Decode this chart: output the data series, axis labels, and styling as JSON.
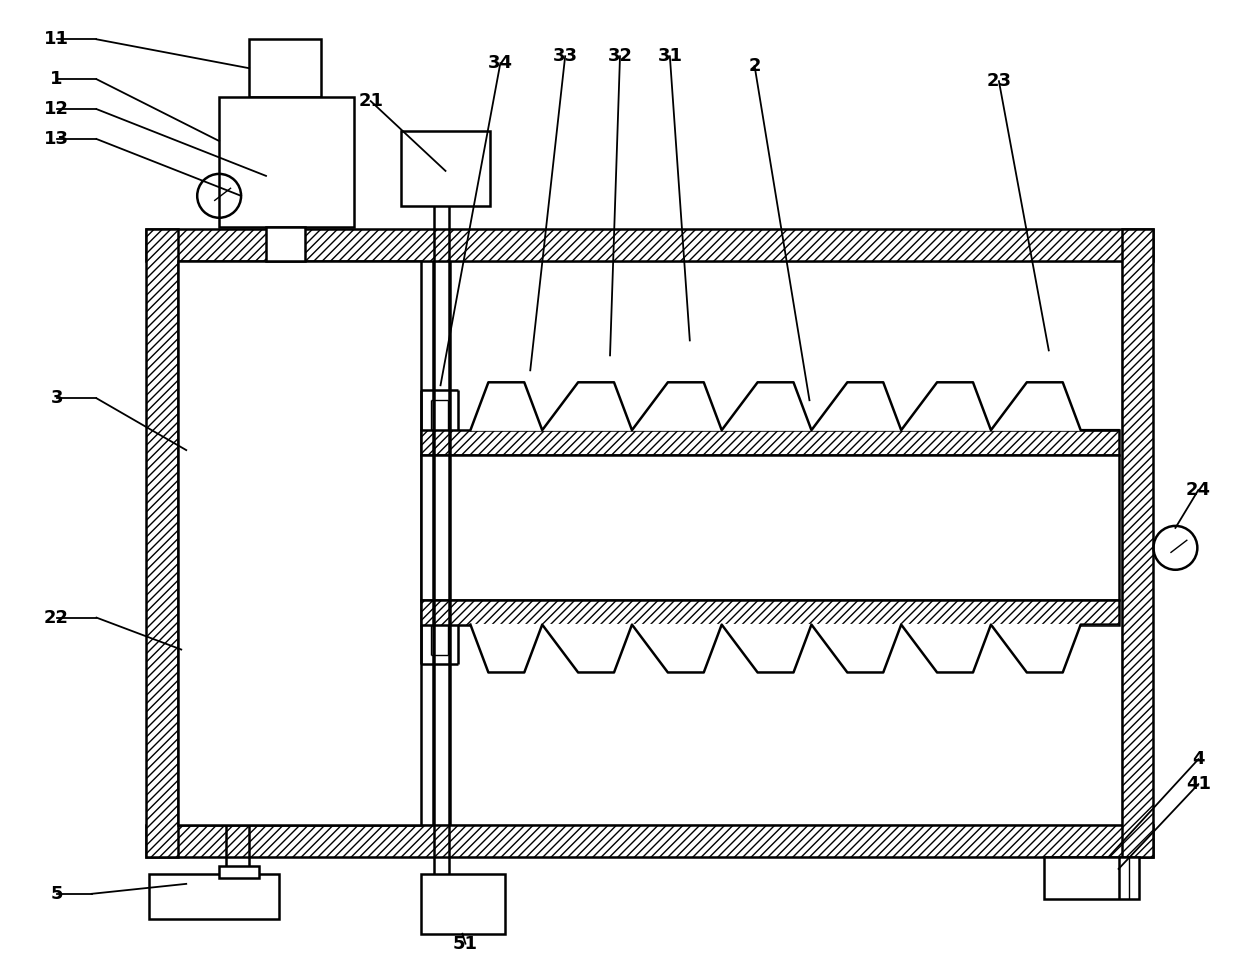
{
  "bg_color": "#ffffff",
  "lw1": 1.0,
  "lw2": 1.8,
  "lw3": 2.5,
  "fig_width": 12.4,
  "fig_height": 9.73
}
